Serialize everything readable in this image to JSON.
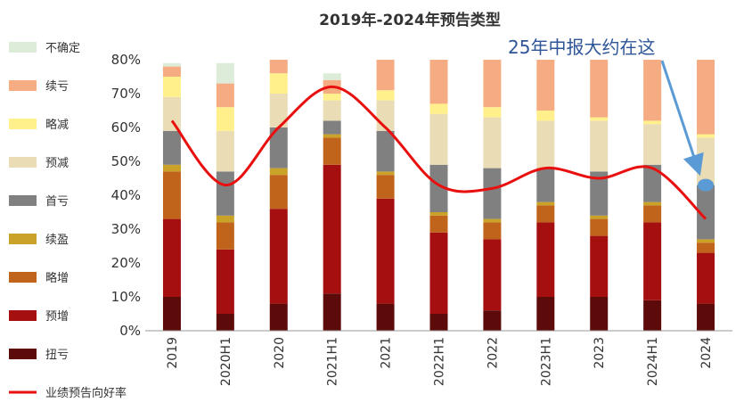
{
  "chart_data": {
    "type": "bar",
    "title": "2019年-2024年预告类型",
    "categories": [
      "2019",
      "2020H1",
      "2020",
      "2021H1",
      "2021",
      "2022H1",
      "2022",
      "2023H1",
      "2023",
      "2024H1",
      "2024"
    ],
    "y_ticks": [
      "0%",
      "10%",
      "20%",
      "30%",
      "40%",
      "50%",
      "60%",
      "70%",
      "80%"
    ],
    "ylim": [
      0,
      80
    ],
    "grid": false,
    "legend_position": "left",
    "series": [
      {
        "name": "扭亏",
        "color": "#5c0a0a",
        "values": [
          10,
          5,
          8,
          11,
          8,
          5,
          6,
          10,
          10,
          9,
          8
        ]
      },
      {
        "name": "预增",
        "color": "#a50f0f",
        "values": [
          23,
          19,
          28,
          38,
          31,
          24,
          21,
          22,
          18,
          23,
          15
        ]
      },
      {
        "name": "略增",
        "color": "#c0641c",
        "values": [
          14,
          8,
          10,
          8,
          7,
          5,
          5,
          5,
          5,
          5,
          3
        ]
      },
      {
        "name": "续盈",
        "color": "#c9a227",
        "values": [
          2,
          2,
          2,
          1,
          1,
          1,
          1,
          1,
          1,
          1,
          1
        ]
      },
      {
        "name": "首亏",
        "color": "#808080",
        "values": [
          10,
          13,
          12,
          4,
          12,
          14,
          15,
          10,
          13,
          11,
          16
        ]
      },
      {
        "name": "预减",
        "color": "#eadcb4",
        "values": [
          10,
          12,
          10,
          6,
          9,
          15,
          15,
          14,
          15,
          12,
          14
        ]
      },
      {
        "name": "略减",
        "color": "#fff08c",
        "values": [
          6,
          7,
          6,
          2,
          3,
          3,
          3,
          3,
          1,
          1,
          1
        ]
      },
      {
        "name": "续亏",
        "color": "#f5ac82",
        "values": [
          3,
          7,
          4,
          4,
          9,
          13,
          14,
          15,
          17,
          18,
          22
        ]
      },
      {
        "name": "不确定",
        "color": "#ddecd8",
        "values": [
          1,
          6,
          0,
          2,
          0,
          0,
          0,
          0,
          0,
          0,
          0
        ]
      }
    ],
    "line": {
      "name": "业绩预告向好率",
      "color": "#e8100f",
      "values": [
        62,
        43,
        60,
        72,
        60,
        43,
        42,
        48,
        45,
        48,
        33
      ]
    },
    "annotation": {
      "text": "25年中报大约在这",
      "point_value": 43,
      "marker_color": "#5b9bd5",
      "arrow_color": "#5b9bd5"
    }
  }
}
